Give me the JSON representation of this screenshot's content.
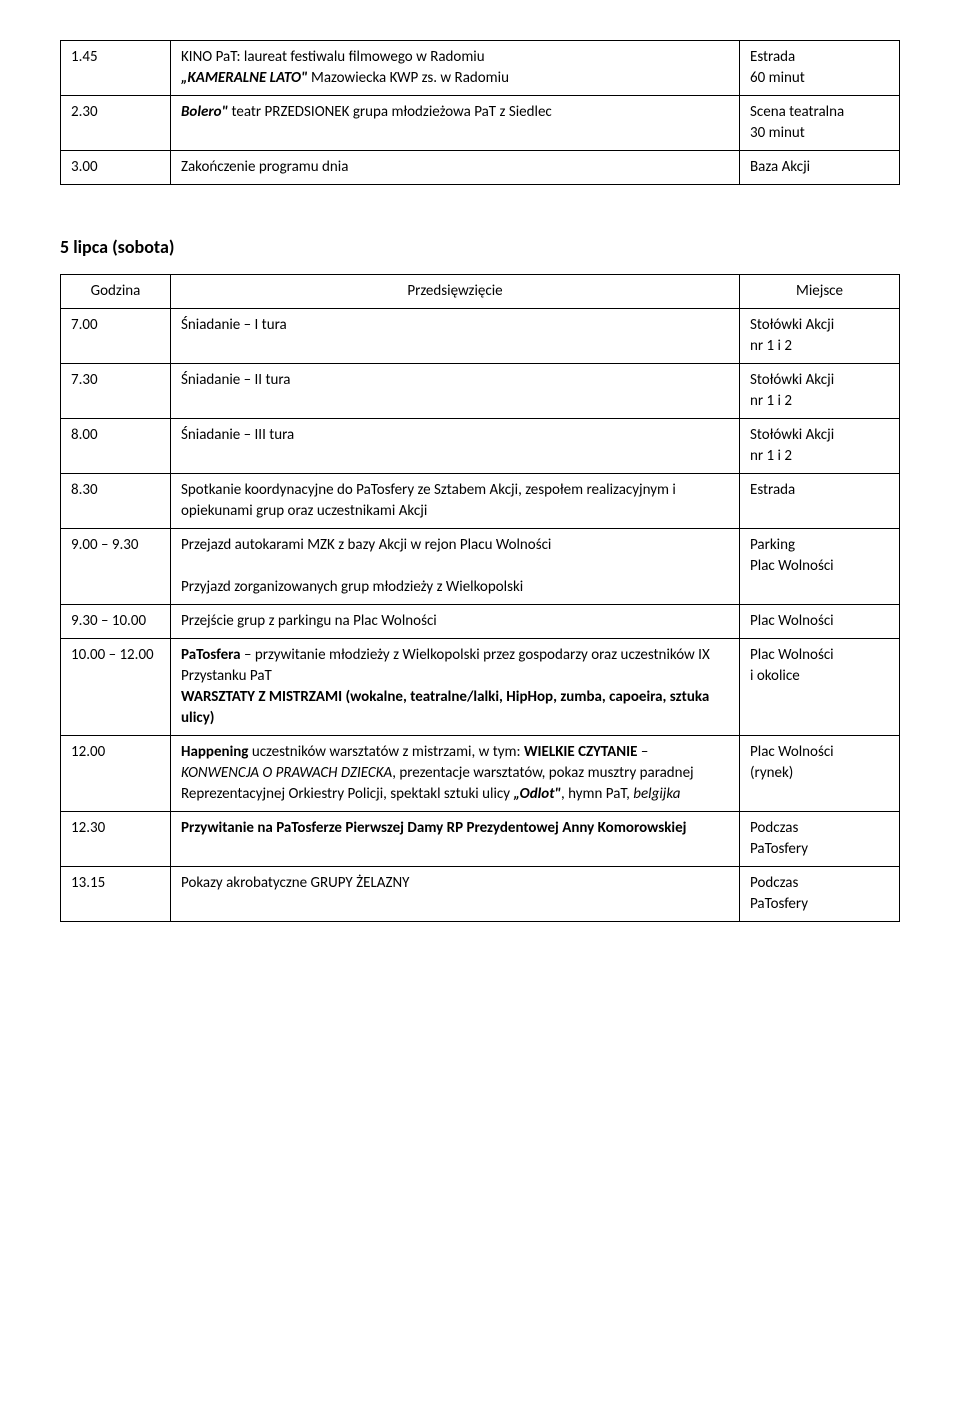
{
  "table1": {
    "rows": [
      {
        "time": "1.45",
        "desc": [
          {
            "t": "KINO PaT: laureat festiwalu filmowego w Radomiu"
          },
          {
            "t": "„KAMERALNE LATO\"",
            "bold": true,
            "ital": true,
            "inline": true
          },
          {
            "t": " Mazowiecka KWP zs. w Radomiu",
            "inlineAfter": true
          }
        ],
        "loc": [
          "Estrada",
          "60 minut"
        ]
      },
      {
        "time": "2.30",
        "desc": [
          {
            "t": "Bolero\"",
            "bold": true,
            "ital": true,
            "inline": true
          },
          {
            "t": " teatr PRZEDSIONEK grupa młodzieżowa PaT z Siedlec",
            "inlineAfter": true
          }
        ],
        "loc": [
          "Scena teatralna",
          "30 minut"
        ]
      },
      {
        "time": "3.00",
        "desc": [
          {
            "t": "Zakończenie programu dnia"
          }
        ],
        "loc": [
          "Baza Akcji"
        ]
      }
    ]
  },
  "section_heading": "5 lipca (sobota)",
  "table2": {
    "header": {
      "time": "Godzina",
      "desc": "Przedsięwzięcie",
      "loc": "Miejsce"
    },
    "rows": [
      {
        "time": "7.00",
        "desc": [
          {
            "t": "Śniadanie – I tura"
          }
        ],
        "loc": [
          "Stołówki Akcji",
          "nr 1 i 2"
        ]
      },
      {
        "time": "7.30",
        "desc": [
          {
            "t": "Śniadanie – II tura"
          }
        ],
        "loc": [
          "Stołówki Akcji",
          "nr 1 i 2"
        ]
      },
      {
        "time": "8.00",
        "desc": [
          {
            "t": "Śniadanie – III tura"
          }
        ],
        "loc": [
          "Stołówki Akcji",
          "nr 1 i 2"
        ]
      },
      {
        "time": "8.30",
        "desc": [
          {
            "t": "Spotkanie koordynacyjne do PaTosfery ze Sztabem Akcji, zespołem realizacyjnym i opiekunami grup oraz uczestnikami Akcji"
          }
        ],
        "loc": [
          "Estrada"
        ]
      },
      {
        "time": "9.00 – 9.30",
        "desc": [
          {
            "t": "Przejazd autokarami MZK z bazy Akcji w rejon Placu Wolności"
          },
          {
            "t": "",
            "blank": true
          },
          {
            "t": "Przyjazd zorganizowanych grup młodzieży z Wielkopolski"
          }
        ],
        "loc": [
          "Parking",
          "Plac Wolności"
        ]
      },
      {
        "time": "9.30 – 10.00",
        "desc": [
          {
            "t": "Przejście grup z parkingu na Plac Wolności"
          }
        ],
        "loc": [
          "Plac Wolności"
        ]
      },
      {
        "time": "10.00 – 12.00",
        "desc": [
          {
            "t": "PaTosfera",
            "bold": true,
            "inline": true
          },
          {
            "t": " – przywitanie młodzieży z Wielkopolski przez gospodarzy oraz uczestników IX Przystanku PaT",
            "inlineAfter": true
          },
          {
            "t": "WARSZTATY Z MISTRZAMI (wokalne, teatralne/lalki, HipHop, zumba, capoeira, sztuka ulicy)",
            "bold": true
          }
        ],
        "loc": [
          "Plac Wolności",
          "i okolice"
        ]
      },
      {
        "time": "12.00",
        "desc": [
          {
            "t": "Happening",
            "bold": true,
            "inline": true
          },
          {
            "t": " uczestników warsztatów z mistrzami, w tym: ",
            "inlineAfter": true,
            "continue": true
          },
          {
            "t": "WIELKIE CZYTANIE",
            "bold": true,
            "inline": true
          },
          {
            "t": " – ",
            "inlineAfter": true,
            "continue": true
          },
          {
            "t": "KONWENCJA O PRAWACH DZIECKA",
            "ital": true,
            "inline": true
          },
          {
            "t": ", prezentacje warsztatów, pokaz musztry paradnej Reprezentacyjnej Orkiestry Policji, spektakl sztuki ulicy ",
            "inlineAfter": true,
            "continue": true
          },
          {
            "t": "„Odlot\"",
            "bold": true,
            "ital": true,
            "inline": true
          },
          {
            "t": ", hymn PaT, ",
            "inlineAfter": true,
            "continue": true
          },
          {
            "t": "belgijka",
            "ital": true,
            "inline": true
          }
        ],
        "loc": [
          "Plac Wolności",
          "(rynek)"
        ]
      },
      {
        "time": "12.30",
        "desc": [
          {
            "t": "Przywitanie na PaTosferze Pierwszej Damy RP Prezydentowej Anny Komorowskiej",
            "bold": true
          }
        ],
        "loc": [
          "Podczas",
          "PaTosfery"
        ]
      },
      {
        "time": "13.15",
        "desc": [
          {
            "t": "Pokazy akrobatyczne GRUPY ŻELAZNY"
          }
        ],
        "loc": [
          "Podczas",
          "PaTosfery"
        ]
      }
    ]
  }
}
